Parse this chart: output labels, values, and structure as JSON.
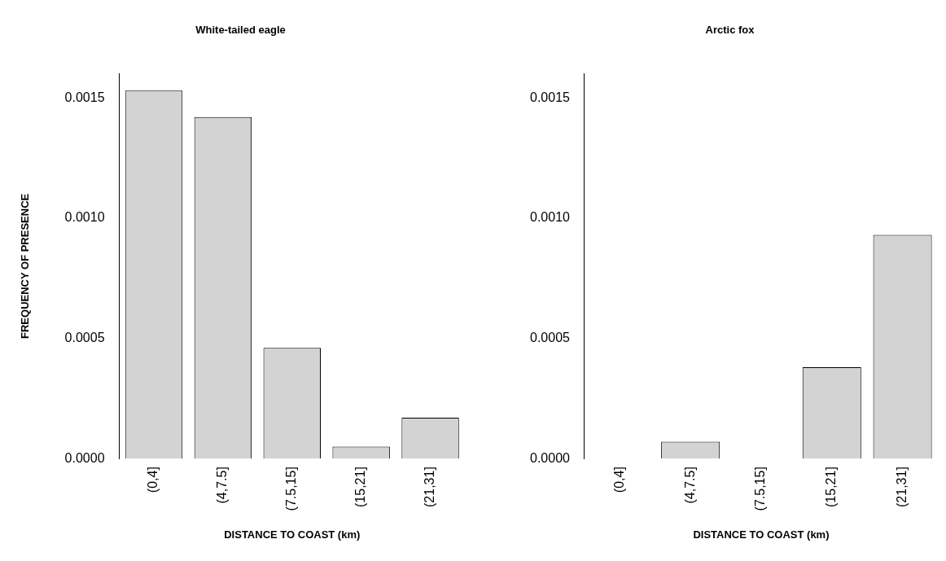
{
  "chart_data": [
    {
      "type": "bar",
      "title": "White-tailed eagle",
      "xlabel": "DISTANCE TO COAST (km)",
      "ylabel": "FREQUENCY OF PRESENCE",
      "categories": [
        "(0,4]",
        "(4,7.5]",
        "(7.5,15]",
        "(15,21]",
        "(21,31]"
      ],
      "values": [
        0.00153,
        0.00142,
        0.00046,
        5e-05,
        0.00017
      ],
      "color": "#d3d3d3",
      "ylim": [
        0,
        0.0016
      ],
      "yticks": [
        {
          "value": 0,
          "label": "0.0000"
        },
        {
          "value": 0.0005,
          "label": "0.0005"
        },
        {
          "value": 0.001,
          "label": "0.0010"
        },
        {
          "value": 0.0015,
          "label": "0.0015"
        }
      ],
      "grid": false,
      "legend": false
    },
    {
      "type": "bar",
      "title": "Arctic fox",
      "xlabel": "DISTANCE TO COAST (km)",
      "categories": [
        "(0,4]",
        "(4,7.5]",
        "(7.5,15]",
        "(15,21]",
        "(21,31]"
      ],
      "values": [
        0,
        7e-05,
        0,
        0.00038,
        0.00093
      ],
      "color": "#d3d3d3",
      "ylim": [
        0,
        0.0016
      ],
      "yticks": [
        {
          "value": 0,
          "label": "0.0000"
        },
        {
          "value": 0.0005,
          "label": "0.0005"
        },
        {
          "value": 0.001,
          "label": "0.0010"
        },
        {
          "value": 0.0015,
          "label": "0.0015"
        }
      ],
      "grid": false,
      "legend": false
    }
  ]
}
